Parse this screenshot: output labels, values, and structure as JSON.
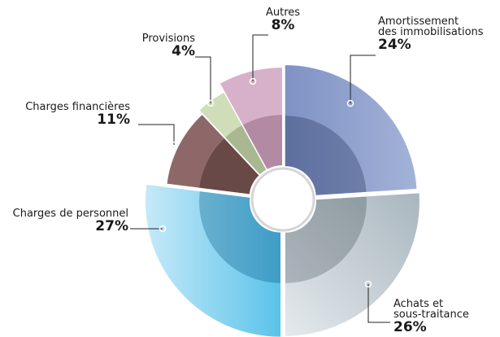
{
  "chart_data": {
    "type": "pie",
    "categories": [
      [
        "Amortissement",
        "des immobilisations"
      ],
      [
        "Achats et",
        "sous-traitance"
      ],
      [
        "Charges de personnel"
      ],
      [
        "Charges financières"
      ],
      [
        "Provisions"
      ],
      [
        "Autres"
      ]
    ],
    "values": [
      24,
      26,
      27,
      11,
      4,
      8
    ],
    "value_labels": [
      "24%",
      "26%",
      "27%",
      "11%",
      "4%",
      "8%"
    ],
    "colors": [
      "#8d9fcc",
      "#b9c5cc",
      "#5cc4eb",
      "#8e6868",
      "#cfddb8",
      "#d7b1c9"
    ]
  }
}
